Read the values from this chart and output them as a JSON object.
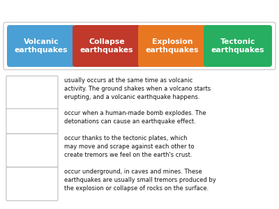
{
  "background_color": "#ffffff",
  "header_boxes": [
    {
      "label": "Volcanic\nearthquakes",
      "color": "#4a9fd4"
    },
    {
      "label": "Collapse\nearthquakes",
      "color": "#c0392b"
    },
    {
      "label": "Explosion\nearthquakes",
      "color": "#e87722"
    },
    {
      "label": "Tectonic\nearthquakes",
      "color": "#27ae60"
    }
  ],
  "descriptions": [
    "usually occurs at the same time as volcanic\nactivity. The ground shakes when a volcano starts\nerupting, and a volcanic earthquake happens.",
    "occur when a human-made bomb explodes. The\ndetonations can cause an earthquake effect.",
    "occur thanks to the tectonic plates, which\nmay move and scrape against each other to\ncreate tremors we feel on the earth's crust.",
    "occur underground, in caves and mines. These\nearthquakes are usually small tremors produced by\nthe explosion or collapse of rocks on the surface."
  ],
  "box_border_color": "#bbbbbb",
  "text_color": "#111111",
  "header_text_color": "#ffffff",
  "outer_border_color": "#cccccc",
  "fig_width": 4.0,
  "fig_height": 3.0,
  "dpi": 100
}
